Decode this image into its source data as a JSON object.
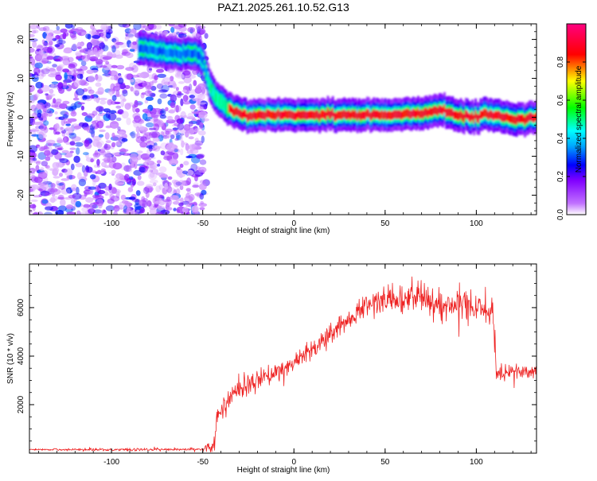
{
  "title": "PAZ1.2025.261.10.52.G13",
  "chart_data": [
    {
      "type": "heatmap",
      "xlabel": "Height of straight line (km)",
      "ylabel": "Frequency (Hz)",
      "xlim": [
        -145,
        133
      ],
      "ylim": [
        -25,
        24
      ],
      "xticks": [
        -100,
        -50,
        0,
        50,
        100
      ],
      "yticks": [
        20,
        10,
        0,
        -10,
        -20
      ],
      "colorbar": {
        "label": "Normalized spectral amplitude",
        "ticks": [
          0.0,
          0.2,
          0.4,
          0.6,
          0.8
        ],
        "range": [
          0,
          1
        ],
        "colors": [
          "#ffffff",
          "#8000ff",
          "#0000ff",
          "#00ffff",
          "#00ff00",
          "#ffff00",
          "#ff0000",
          "#ff0080"
        ]
      },
      "ridge": {
        "x": [
          -85,
          -75,
          -70,
          -60,
          -55,
          -50,
          -48,
          -46,
          -44,
          -42,
          -40,
          -38,
          -35,
          -30,
          -25,
          -20,
          -10,
          0,
          10,
          20,
          30,
          40,
          50,
          60,
          70,
          75,
          80,
          85,
          90,
          95,
          100,
          105,
          110,
          115,
          120,
          125,
          130,
          133
        ],
        "y": [
          17.5,
          17,
          16.5,
          16,
          16.5,
          15,
          11,
          8,
          6,
          5,
          4,
          3,
          1.8,
          1,
          0.5,
          0.5,
          0.7,
          0.6,
          0.6,
          0.7,
          0.6,
          0.6,
          0.6,
          0.6,
          0.9,
          1.5,
          1.8,
          1.5,
          0.5,
          0.3,
          0,
          1,
          0.5,
          0,
          -0.5,
          -0.8,
          0,
          0
        ]
      },
      "noise_region": {
        "x": [
          -145,
          -48
        ],
        "y": [
          -25,
          24
        ]
      }
    },
    {
      "type": "line",
      "xlabel": "Height of straight line (km)",
      "ylabel": "SNR (10 * v/v)",
      "xlim": [
        -145,
        133
      ],
      "ylim": [
        0,
        7800
      ],
      "xticks": [
        -100,
        -50,
        0,
        50,
        100
      ],
      "yticks": [
        2000,
        4000,
        6000
      ],
      "color": "#ee2222",
      "envelope": {
        "x": [
          -145,
          -50,
          -44,
          -42,
          -38,
          -30,
          -20,
          -10,
          0,
          10,
          20,
          30,
          40,
          50,
          60,
          70,
          80,
          90,
          100,
          105,
          109,
          111,
          115,
          120,
          125,
          133
        ],
        "y": [
          150,
          150,
          300,
          1500,
          2000,
          2700,
          3000,
          3300,
          3700,
          4300,
          4900,
          5500,
          6100,
          6300,
          6300,
          6300,
          6200,
          6200,
          6100,
          6000,
          6000,
          3400,
          3300,
          3400,
          3300,
          3300
        ]
      },
      "noise_amplitude": {
        "x": [
          -145,
          -50,
          -42,
          0,
          30,
          40,
          100,
          109,
          111,
          133
        ],
        "y": [
          40,
          60,
          450,
          350,
          350,
          500,
          600,
          600,
          350,
          350
        ]
      }
    }
  ]
}
